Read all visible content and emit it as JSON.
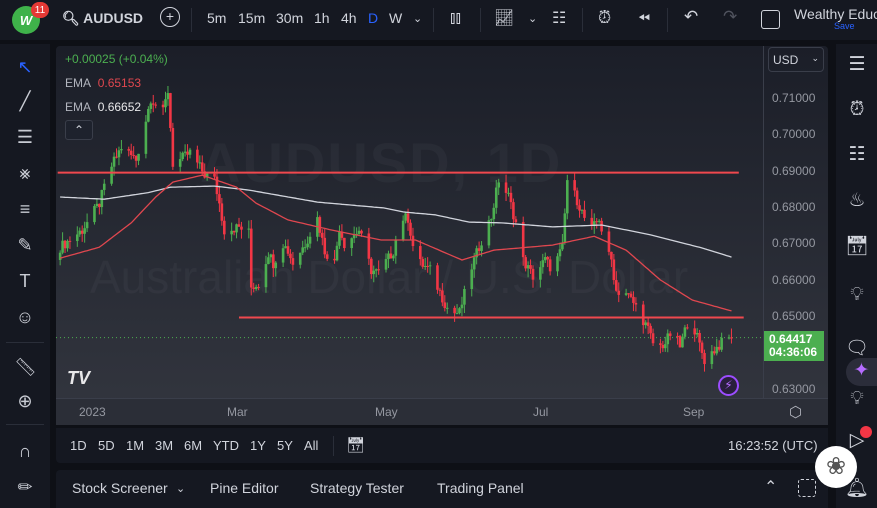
{
  "topbar": {
    "notification_count": "11",
    "symbol": "AUDUSD",
    "intervals": [
      "5m",
      "15m",
      "30m",
      "1h",
      "4h",
      "D",
      "W"
    ],
    "active_interval": "D",
    "layout_name": "Wealthy Educ",
    "save_label": "Save"
  },
  "legend": {
    "change": "+0.00025 (+0.04%)",
    "ema1_label": "EMA",
    "ema1_value": "0.65153",
    "ema2_label": "EMA",
    "ema2_value": "0.66652"
  },
  "watermark": {
    "line1": "AUDUSD, 1D",
    "line2": "Australian Dollar / U.S. Dollar"
  },
  "price_scale": {
    "currency": "USD",
    "ticks": [
      "0.71000",
      "0.70000",
      "0.69000",
      "0.68000",
      "0.67000",
      "0.66000",
      "0.65000",
      "0.63000"
    ],
    "last_price": "0.64417",
    "countdown": "04:36:06"
  },
  "time_axis": [
    "2023",
    "Mar",
    "May",
    "Jul",
    "Sep"
  ],
  "range_bar": {
    "ranges": [
      "1D",
      "5D",
      "1M",
      "3M",
      "6M",
      "YTD",
      "1Y",
      "5Y",
      "All"
    ],
    "clock": "16:23:52 (UTC)"
  },
  "panels": {
    "tabs": [
      "Stock Screener",
      "Pine Editor",
      "Strategy Tester",
      "Trading Panel"
    ]
  },
  "colors": {
    "up": "#4caf50",
    "down": "#f23645",
    "ema_fast": "#e0474f",
    "ema_slow": "#d1d4dc",
    "level": "#f0484e",
    "accent": "#2962ff"
  },
  "chart_data": {
    "type": "candlestick",
    "symbol": "AUDUSD",
    "interval": "1D",
    "ylim": [
      0.625,
      0.716
    ],
    "last_price": 0.64417,
    "close_path": [
      [
        "2022-12-19",
        0.669
      ],
      [
        "2022-12-28",
        0.6737
      ],
      [
        "2023-01-04",
        0.681
      ],
      [
        "2023-01-08",
        0.69
      ],
      [
        "2023-01-13",
        0.6965
      ],
      [
        "2023-01-19",
        0.693
      ],
      [
        "2023-01-23",
        0.704
      ],
      [
        "2023-01-25",
        0.71
      ],
      [
        "2023-01-30",
        0.706
      ],
      [
        "2023-02-01",
        0.712
      ],
      [
        "2023-02-03",
        0.692
      ],
      [
        "2023-02-06",
        0.693
      ],
      [
        "2023-02-10",
        0.695
      ],
      [
        "2023-02-16",
        0.689
      ],
      [
        "2023-02-20",
        0.6875
      ],
      [
        "2023-02-22",
        0.681
      ],
      [
        "2023-02-24",
        0.6737
      ],
      [
        "2023-03-02",
        0.6745
      ],
      [
        "2023-03-06",
        0.673
      ],
      [
        "2023-03-07",
        0.658
      ],
      [
        "2023-03-10",
        0.659
      ],
      [
        "2023-03-14",
        0.6675
      ],
      [
        "2023-03-16",
        0.6647
      ],
      [
        "2023-03-20",
        0.67
      ],
      [
        "2023-03-22",
        0.668
      ],
      [
        "2023-03-24",
        0.6647
      ],
      [
        "2023-03-29",
        0.67
      ],
      [
        "2023-04-03",
        0.677
      ],
      [
        "2023-04-06",
        0.668
      ],
      [
        "2023-04-10",
        0.6647
      ],
      [
        "2023-04-12",
        0.6745
      ],
      [
        "2023-04-14",
        0.67
      ],
      [
        "2023-04-20",
        0.6737
      ],
      [
        "2023-04-25",
        0.6627
      ],
      [
        "2023-04-28",
        0.662
      ],
      [
        "2023-05-04",
        0.668
      ],
      [
        "2023-05-07",
        0.677
      ],
      [
        "2023-05-10",
        0.677
      ],
      [
        "2023-05-13",
        0.6655
      ],
      [
        "2023-05-19",
        0.6627
      ],
      [
        "2023-05-25",
        0.6537
      ],
      [
        "2023-05-27",
        0.651
      ],
      [
        "2023-05-31",
        0.651
      ],
      [
        "2023-06-05",
        0.6636
      ],
      [
        "2023-06-09",
        0.671
      ],
      [
        "2023-06-13",
        0.6773
      ],
      [
        "2023-06-16",
        0.6875
      ],
      [
        "2023-06-20",
        0.683
      ],
      [
        "2023-06-23",
        0.6757
      ],
      [
        "2023-06-24",
        0.6675
      ],
      [
        "2023-06-30",
        0.661
      ],
      [
        "2023-07-05",
        0.6655
      ],
      [
        "2023-07-08",
        0.6627
      ],
      [
        "2023-07-12",
        0.669
      ],
      [
        "2023-07-13",
        0.678
      ],
      [
        "2023-07-14",
        0.6875
      ],
      [
        "2023-07-18",
        0.682
      ],
      [
        "2023-07-21",
        0.677
      ],
      [
        "2023-07-24",
        0.6737
      ],
      [
        "2023-07-27",
        0.677
      ],
      [
        "2023-07-30",
        0.6675
      ],
      [
        "2023-08-01",
        0.6655
      ],
      [
        "2023-08-03",
        0.657
      ],
      [
        "2023-08-07",
        0.6565
      ],
      [
        "2023-08-12",
        0.6518
      ],
      [
        "2023-08-16",
        0.6463
      ],
      [
        "2023-08-19",
        0.6408
      ],
      [
        "2023-08-23",
        0.6427
      ],
      [
        "2023-08-26",
        0.6463
      ],
      [
        "2023-08-29",
        0.6416
      ],
      [
        "2023-09-01",
        0.6482
      ],
      [
        "2023-09-04",
        0.6463
      ],
      [
        "2023-09-08",
        0.638
      ],
      [
        "2023-09-12",
        0.6408
      ],
      [
        "2023-09-15",
        0.6427
      ],
      [
        "2023-09-19",
        0.6442
      ]
    ],
    "ema_fast": [
      [
        "2022-12-19",
        0.666
      ],
      [
        "2023-01-04",
        0.669
      ],
      [
        "2023-01-17",
        0.6757
      ],
      [
        "2023-01-27",
        0.6828
      ],
      [
        "2023-02-03",
        0.6869
      ],
      [
        "2023-02-15",
        0.6888
      ],
      [
        "2023-03-01",
        0.6855
      ],
      [
        "2023-03-09",
        0.6811
      ],
      [
        "2023-03-22",
        0.6765
      ],
      [
        "2023-04-09",
        0.6737
      ],
      [
        "2023-04-29",
        0.671
      ],
      [
        "2023-05-13",
        0.671
      ],
      [
        "2023-06-01",
        0.6655
      ],
      [
        "2023-06-14",
        0.6682
      ],
      [
        "2023-06-28",
        0.669
      ],
      [
        "2023-07-08",
        0.6696
      ],
      [
        "2023-07-25",
        0.672
      ],
      [
        "2023-08-07",
        0.6682
      ],
      [
        "2023-08-21",
        0.66
      ],
      [
        "2023-09-03",
        0.6545
      ],
      [
        "2023-09-19",
        0.6515
      ]
    ],
    "ema_slow": [
      [
        "2022-12-19",
        0.6828
      ],
      [
        "2023-01-06",
        0.6822
      ],
      [
        "2023-01-24",
        0.684
      ],
      [
        "2023-02-02",
        0.6855
      ],
      [
        "2023-02-20",
        0.6858
      ],
      [
        "2023-03-06",
        0.6847
      ],
      [
        "2023-04-03",
        0.6814
      ],
      [
        "2023-04-30",
        0.6798
      ],
      [
        "2023-05-08",
        0.6787
      ],
      [
        "2023-05-21",
        0.6779
      ],
      [
        "2023-06-04",
        0.6759
      ],
      [
        "2023-06-17",
        0.6757
      ],
      [
        "2023-07-08",
        0.6746
      ],
      [
        "2023-07-28",
        0.6751
      ],
      [
        "2023-08-17",
        0.6724
      ],
      [
        "2023-09-07",
        0.6688
      ],
      [
        "2023-09-19",
        0.6663
      ]
    ],
    "levels": [
      {
        "price": 0.6895,
        "from": "2022-12-18",
        "to": "2023-09-22"
      },
      {
        "price": 0.6497,
        "from": "2023-03-02",
        "to": "2023-09-24"
      }
    ]
  }
}
